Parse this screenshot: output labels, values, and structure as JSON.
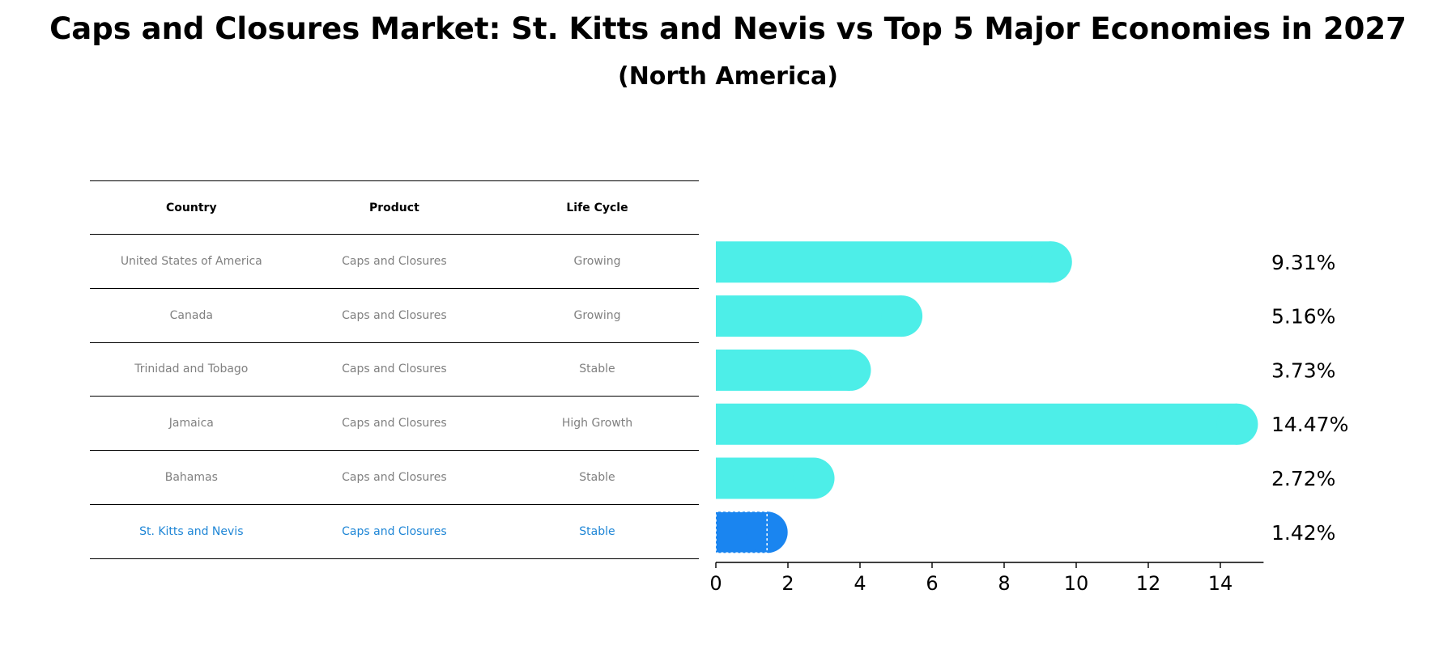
{
  "title": "Caps and Closures Market: St. Kitts and Nevis vs Top 5 Major Economies in 2027",
  "subtitle": "(North America)",
  "table": {
    "headers": [
      "Country",
      "Product",
      "Life Cycle"
    ],
    "rows": [
      {
        "country": "United States of America",
        "product": "Caps and Closures",
        "life_cycle": "Growing"
      },
      {
        "country": "Canada",
        "product": "Caps and Closures",
        "life_cycle": "Growing"
      },
      {
        "country": "Trinidad and Tobago",
        "product": "Caps and Closures",
        "life_cycle": "Stable"
      },
      {
        "country": "Jamaica",
        "product": "Caps and Closures",
        "life_cycle": "High Growth"
      },
      {
        "country": "Bahamas",
        "product": "Caps and Closures",
        "life_cycle": "Stable"
      },
      {
        "country": "St. Kitts and Nevis",
        "product": "Caps and Closures",
        "life_cycle": "Stable"
      }
    ]
  },
  "chart_data": {
    "type": "bar",
    "orientation": "horizontal",
    "title": "Caps and Closures Market: St. Kitts and Nevis vs Top 5 Major Economies in 2027",
    "categories": [
      "United States of America",
      "Canada",
      "Trinidad and Tobago",
      "Jamaica",
      "Bahamas",
      "St. Kitts and Nevis"
    ],
    "values": [
      9.31,
      5.16,
      3.73,
      14.47,
      2.72,
      1.42
    ],
    "value_labels": [
      "9.31%",
      "5.16%",
      "3.73%",
      "14.47%",
      "2.72%",
      "1.42%"
    ],
    "xlim": [
      0,
      15.2
    ],
    "xticks": [
      0,
      2,
      4,
      6,
      8,
      10,
      12,
      14
    ],
    "xlabel": "",
    "ylabel": "",
    "colors": {
      "default": "#4deee8",
      "highlight": "#1a85f0"
    },
    "highlight_index": 5
  }
}
